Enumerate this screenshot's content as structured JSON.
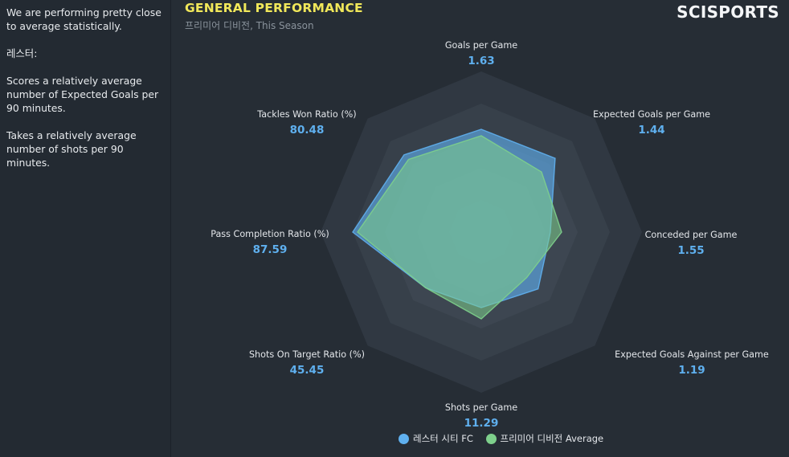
{
  "sidebar": {
    "paragraphs": [
      "We are performing pretty close to average statistically.",
      "레스터:",
      "Scores a relatively average number of Expected Goals per 90 minutes.",
      "Takes a relatively average number of shots per 90 minutes."
    ]
  },
  "header": {
    "title": "GENERAL PERFORMANCE",
    "subtitle": "프리미어 디비전, This Season",
    "brand": "SCISPORTS"
  },
  "colors": {
    "team": "#5fb0ef",
    "average": "#7ed08c",
    "title": "#f1e85a"
  },
  "chart_data": {
    "type": "radar",
    "title": "GENERAL PERFORMANCE",
    "subtitle": "프리미어 디비전, This Season",
    "axes": [
      {
        "name": "Goals per Game",
        "value": "1.63"
      },
      {
        "name": "Expected Goals per Game",
        "value": "1.44"
      },
      {
        "name": "Conceded per Game",
        "value": "1.55"
      },
      {
        "name": "Expected Goals Against per Game",
        "value": "1.19"
      },
      {
        "name": "Shots per Game",
        "value": "11.29"
      },
      {
        "name": "Shots On Target Ratio (%)",
        "value": "45.45"
      },
      {
        "name": "Pass Completion Ratio (%)",
        "value": "87.59"
      },
      {
        "name": "Tackles Won Ratio (%)",
        "value": "80.48"
      }
    ],
    "series": [
      {
        "name": "레스터 시티 FC",
        "values": [
          0.64,
          0.65,
          0.43,
          0.5,
          0.47,
          0.49,
          0.8,
          0.68
        ]
      },
      {
        "name": "프리미어 디비전 Average",
        "values": [
          0.6,
          0.53,
          0.5,
          0.4,
          0.54,
          0.49,
          0.77,
          0.64
        ]
      }
    ],
    "legend": [
      "레스터 시티 FC",
      "프리미어 디비전 Average"
    ],
    "legend_position": "bottom"
  }
}
